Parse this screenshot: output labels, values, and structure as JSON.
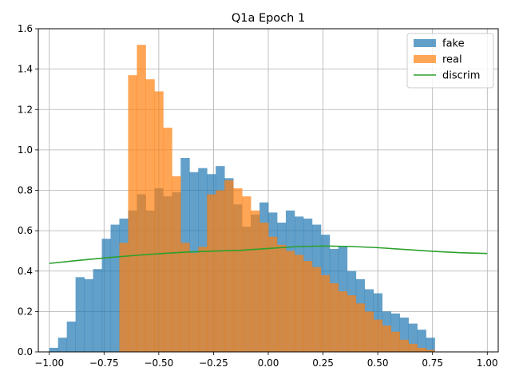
{
  "chart_data": {
    "type": "bar",
    "title": "Q1a Epoch 1",
    "xlabel": "",
    "ylabel": "",
    "xlim": [
      -1.05,
      1.05
    ],
    "ylim": [
      0,
      1.6
    ],
    "x_ticks": [
      "-1.00",
      "-0.75",
      "-0.50",
      "-0.25",
      "0.00",
      "0.25",
      "0.50",
      "0.75",
      "1.00"
    ],
    "y_ticks": [
      "0.0",
      "0.2",
      "0.4",
      "0.6",
      "0.8",
      "1.0",
      "1.2",
      "1.4",
      "1.6"
    ],
    "grid": true,
    "legend_position": "top-right",
    "bin_start": -1.0,
    "bin_width": 0.04,
    "series": [
      {
        "name": "fake",
        "color": "#1f77b4",
        "values": [
          0.02,
          0.07,
          0.15,
          0.37,
          0.36,
          0.41,
          0.56,
          0.63,
          0.66,
          0.7,
          0.78,
          0.7,
          0.81,
          0.77,
          0.79,
          0.96,
          0.89,
          0.91,
          0.88,
          0.92,
          0.86,
          0.73,
          0.62,
          0.68,
          0.74,
          0.69,
          0.64,
          0.7,
          0.67,
          0.66,
          0.63,
          0.58,
          0.51,
          0.52,
          0.4,
          0.36,
          0.31,
          0.29,
          0.2,
          0.19,
          0.17,
          0.14,
          0.11,
          0.07
        ]
      },
      {
        "name": "real",
        "color": "#ff7f0e",
        "values": [
          0.0,
          0.0,
          0.0,
          0.0,
          0.0,
          0.0,
          0.0,
          0.0,
          0.54,
          1.37,
          1.52,
          1.35,
          1.29,
          1.11,
          0.87,
          0.54,
          0.49,
          0.52,
          0.78,
          0.8,
          0.85,
          0.81,
          0.77,
          0.7,
          0.64,
          0.57,
          0.53,
          0.5,
          0.48,
          0.45,
          0.42,
          0.38,
          0.34,
          0.3,
          0.28,
          0.24,
          0.2,
          0.16,
          0.13,
          0.1,
          0.06,
          0.04,
          0.02,
          0.01
        ]
      },
      {
        "name": "discrim",
        "color": "#2ca02c",
        "type": "line",
        "x": [
          -1.0,
          -0.875,
          -0.75,
          -0.625,
          -0.5,
          -0.375,
          -0.25,
          -0.125,
          0.0,
          0.125,
          0.25,
          0.375,
          0.5,
          0.625,
          0.75,
          0.875,
          1.0
        ],
        "values": [
          0.438,
          0.452,
          0.465,
          0.476,
          0.486,
          0.494,
          0.499,
          0.503,
          0.512,
          0.521,
          0.524,
          0.522,
          0.516,
          0.507,
          0.498,
          0.491,
          0.487
        ]
      }
    ]
  }
}
